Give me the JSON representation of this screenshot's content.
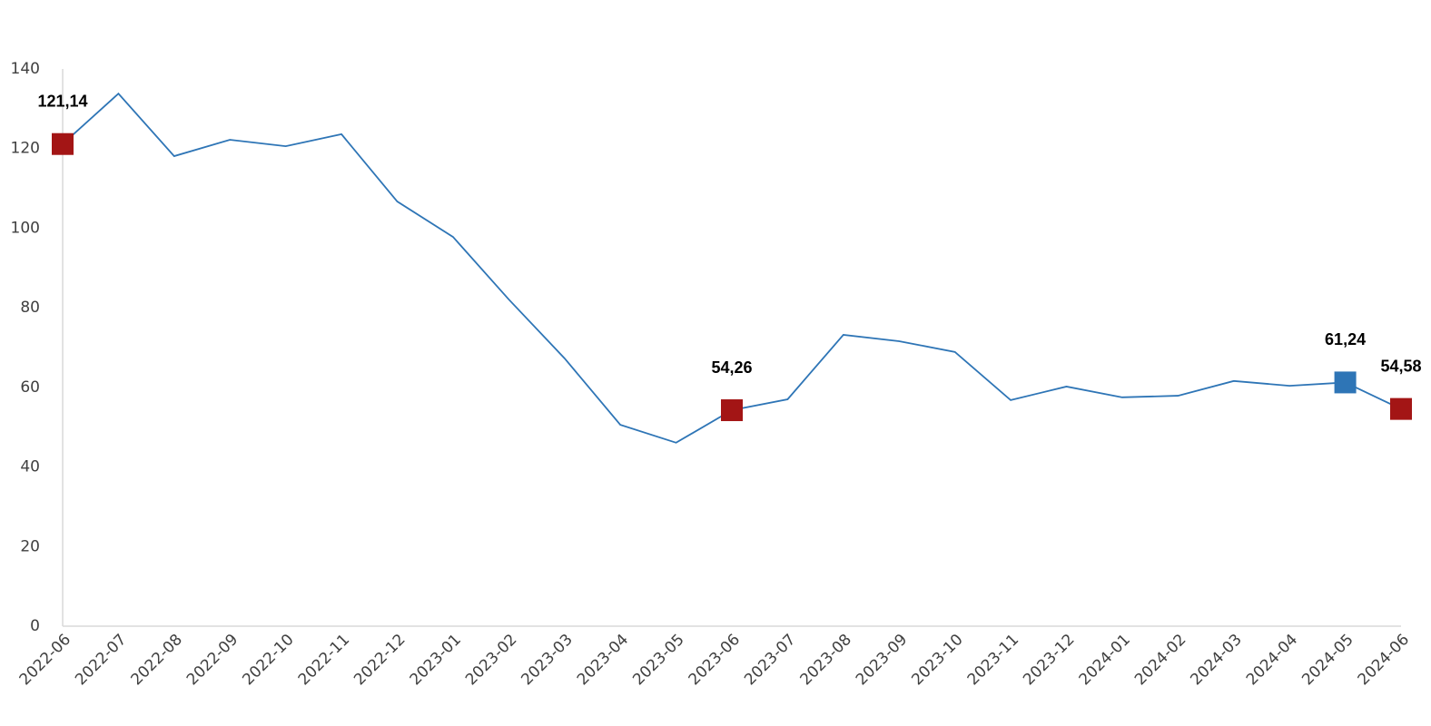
{
  "chart_data": {
    "type": "line",
    "x": [
      "2022-06",
      "2022-07",
      "2022-08",
      "2022-09",
      "2022-10",
      "2022-11",
      "2022-12",
      "2023-01",
      "2023-02",
      "2023-03",
      "2023-04",
      "2023-05",
      "2023-06",
      "2023-07",
      "2023-08",
      "2023-09",
      "2023-10",
      "2023-11",
      "2023-12",
      "2024-01",
      "2024-02",
      "2024-03",
      "2024-04",
      "2024-05",
      "2024-06"
    ],
    "series": [
      {
        "color": "#2e75b6",
        "values": [
          121.14,
          133.8,
          118.1,
          122.2,
          120.6,
          123.6,
          106.7,
          97.8,
          82.1,
          67.3,
          50.6,
          46.1,
          54.26,
          57.0,
          73.2,
          71.6,
          68.9,
          56.8,
          60.2,
          57.5,
          57.9,
          61.6,
          60.4,
          61.24,
          54.58
        ],
        "value_labels": [
          "121,14",
          null,
          null,
          null,
          null,
          null,
          null,
          null,
          null,
          null,
          null,
          null,
          "54,26",
          null,
          null,
          null,
          null,
          null,
          null,
          null,
          null,
          null,
          null,
          "61,24",
          "54,58"
        ],
        "marker_colors": [
          "#a31515",
          null,
          null,
          null,
          null,
          null,
          null,
          null,
          null,
          null,
          null,
          null,
          "#a31515",
          null,
          null,
          null,
          null,
          null,
          null,
          null,
          null,
          null,
          null,
          "#2e75b6",
          "#a31515"
        ]
      }
    ],
    "ylim": [
      0,
      140
    ],
    "yticks": [
      0,
      20,
      40,
      60,
      80,
      100,
      120,
      140
    ],
    "grid": false
  }
}
